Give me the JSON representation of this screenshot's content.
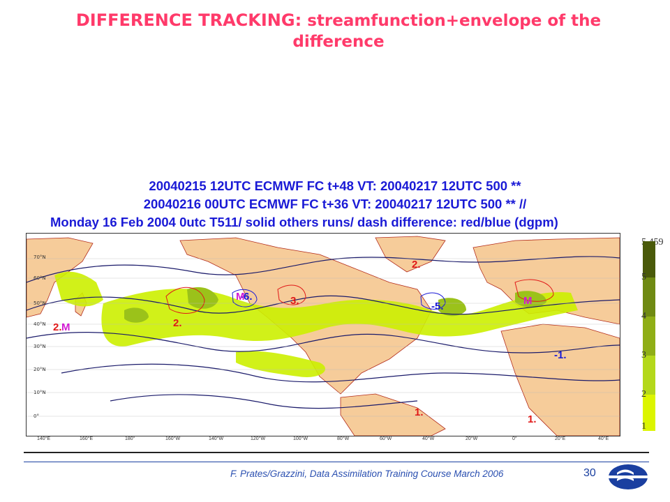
{
  "title": {
    "line1_strong": "DIFFERENCE TRACKING:",
    "line1_rest": " streamfunction+envelope of the",
    "line2": "difference"
  },
  "forecast_header": {
    "line1": "20040215 12UTC ECMWF  FC t+48 VT:   20040217 12UTC 500 **",
    "line2": "20040216 00UTC ECMWF  FC t+36 VT:   20040217 12UTC 500 ** //",
    "line3": "Monday 16 Feb 2004 0utc T511/ solid     others runs/ dash     difference: red/blue (dgpm)"
  },
  "map": {
    "lat_labels": [
      "70°N",
      "60°N",
      "50°N",
      "40°N",
      "30°N",
      "20°N",
      "10°N",
      "0°"
    ],
    "lon_labels": [
      "140°E",
      "160°E",
      "180°",
      "160°W",
      "140°W",
      "120°W",
      "100°W",
      "80°W",
      "60°W",
      "40°W",
      "20°W",
      "0°",
      "20°E",
      "40°E"
    ],
    "markers": [
      {
        "text": "2.",
        "color": "red"
      },
      {
        "text": "2.",
        "color": "red"
      },
      {
        "text": "3.",
        "color": "red"
      },
      {
        "text": "2.",
        "color": "red"
      },
      {
        "text": "1.",
        "color": "red"
      },
      {
        "text": "1.",
        "color": "red"
      },
      {
        "text": "-6.",
        "color": "blue"
      },
      {
        "text": "-5.",
        "color": "blue"
      },
      {
        "text": "-1.",
        "color": "blue"
      },
      {
        "text": "M",
        "color": "mag"
      },
      {
        "text": "M",
        "color": "mag"
      },
      {
        "text": "M",
        "color": "mag"
      }
    ],
    "colors": {
      "land": "#f6cc9a",
      "shade_light": "#ccf000",
      "shade_mid": "#9bc21a",
      "contour_solid": "#1a1a6a",
      "contour_diff": "#e01818"
    }
  },
  "legend": {
    "max_label": "5.459",
    "levels": [
      "5",
      "4",
      "3",
      "2",
      "1"
    ],
    "colors": [
      "#4a5a0a",
      "#6f8a12",
      "#8fae16",
      "#b4d81a",
      "#dcf500"
    ]
  },
  "footer": {
    "credit": "F. Prates/Grazzini,  Data Assimilation Training Course March 2006",
    "page_number": "30"
  }
}
